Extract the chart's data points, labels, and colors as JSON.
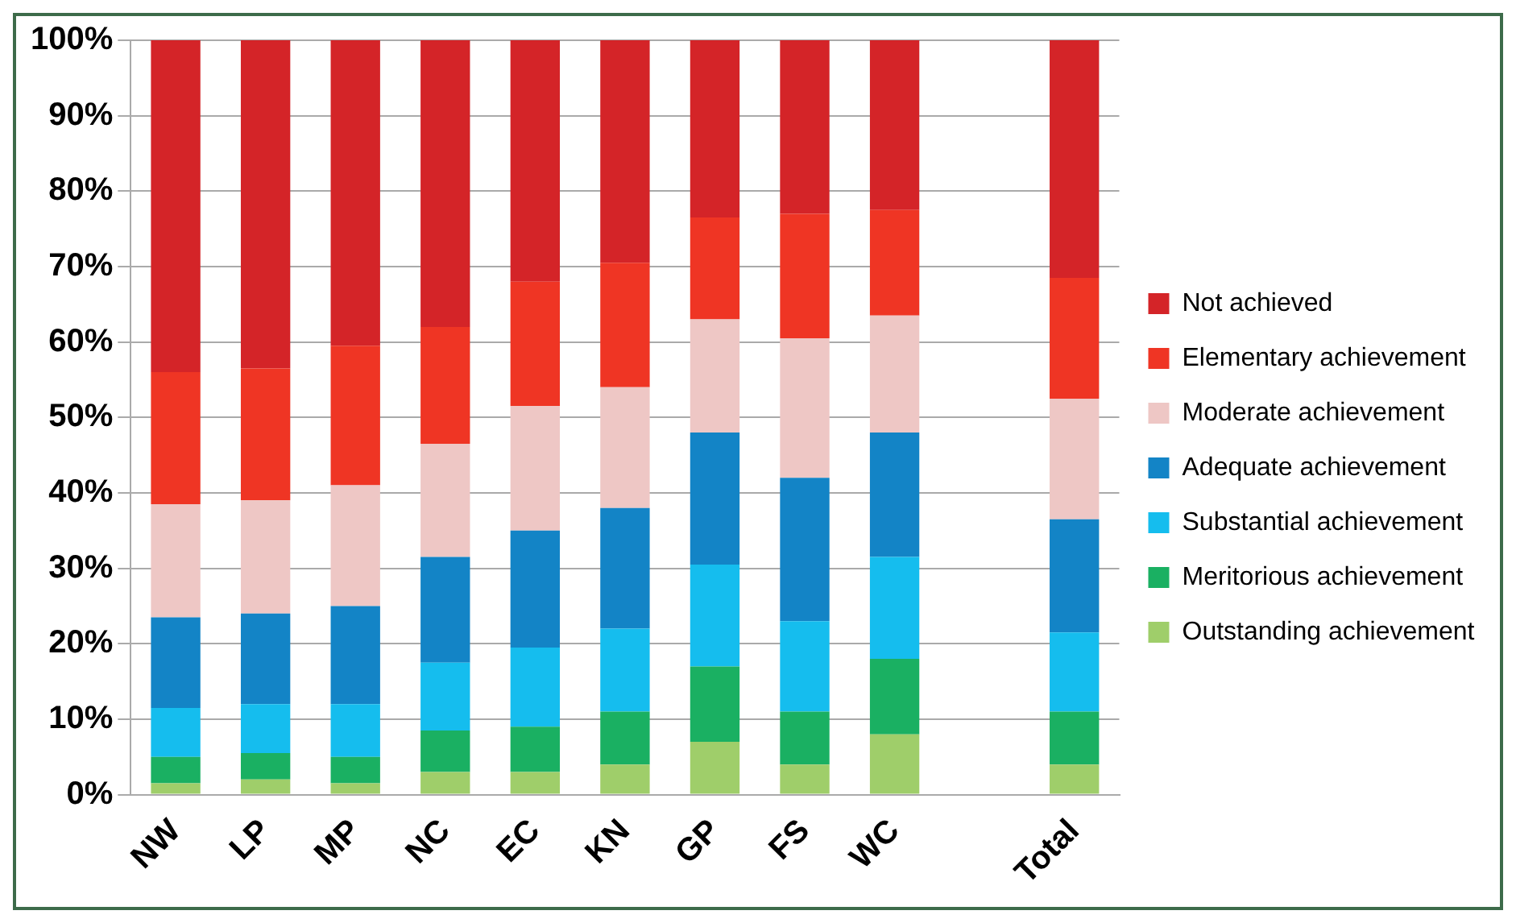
{
  "chart_data": {
    "type": "bar",
    "stacked": true,
    "categories": [
      "NW",
      "LP",
      "MP",
      "NC",
      "EC",
      "KN",
      "GP",
      "FS",
      "WC",
      null,
      "Total"
    ],
    "series": [
      {
        "name": "Outstanding achievement",
        "color": "#9fce6a",
        "values": [
          1.5,
          2,
          1.5,
          3,
          3,
          4,
          7,
          4,
          8,
          null,
          4
        ]
      },
      {
        "name": "Meritorious achievement",
        "color": "#1ab062",
        "values": [
          3.5,
          3.5,
          3.5,
          5.5,
          6,
          7,
          10,
          7,
          10,
          null,
          7
        ]
      },
      {
        "name": "Substantial achievement",
        "color": "#15bdee",
        "values": [
          6.5,
          6.5,
          7,
          9,
          10.5,
          11,
          13.5,
          12,
          13.5,
          null,
          10.5
        ]
      },
      {
        "name": "Adequate achievement",
        "color": "#1384c6",
        "values": [
          12,
          12,
          13,
          14,
          15.5,
          16,
          17.5,
          19,
          16.5,
          null,
          15
        ]
      },
      {
        "name": "Moderate achievement",
        "color": "#eec7c5",
        "values": [
          15,
          15,
          16,
          15,
          16.5,
          16,
          15,
          18.5,
          15.5,
          null,
          16
        ]
      },
      {
        "name": "Elementary achievement",
        "color": "#ef3524",
        "values": [
          17.5,
          17.5,
          18.5,
          15.5,
          16.5,
          16.5,
          13.5,
          16.5,
          14,
          null,
          16
        ]
      },
      {
        "name": "Not achieved",
        "color": "#d42428",
        "values": [
          44,
          43.5,
          40.5,
          38,
          32,
          29.5,
          23.5,
          23,
          22.5,
          null,
          31.5
        ]
      }
    ],
    "ylim": [
      0,
      100
    ],
    "yticks": [
      {
        "value": 0,
        "label": "0%"
      },
      {
        "value": 10,
        "label": "10%"
      },
      {
        "value": 20,
        "label": "20%"
      },
      {
        "value": 30,
        "label": "30%"
      },
      {
        "value": 40,
        "label": "40%"
      },
      {
        "value": 50,
        "label": "50%"
      },
      {
        "value": 60,
        "label": "60%"
      },
      {
        "value": 70,
        "label": "70%"
      },
      {
        "value": 80,
        "label": "80%"
      },
      {
        "value": 90,
        "label": "90%"
      },
      {
        "value": 100,
        "label": "100%"
      }
    ],
    "grid": "y",
    "legend": "right"
  }
}
